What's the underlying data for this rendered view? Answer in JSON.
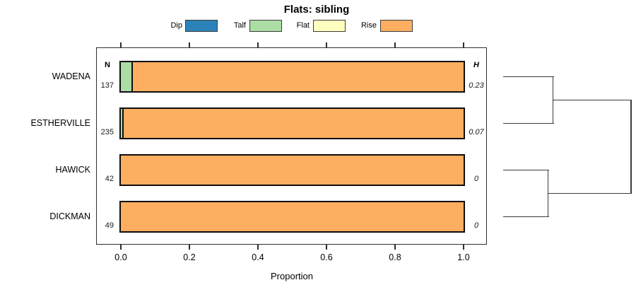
{
  "chart_data": {
    "type": "bar",
    "variant": "horizontal-stacked-proportion-with-dendrogram",
    "title": "Flats: sibling",
    "xlabel": "Proportion",
    "xlim": [
      -0.07,
      1.07
    ],
    "xticks": [
      0,
      0.2,
      0.4,
      0.6,
      0.8,
      1.0
    ],
    "xtick_labels": [
      "0.0",
      "0.2",
      "0.4",
      "0.6",
      "0.8",
      "1.0"
    ],
    "grid": false,
    "legend_position": "top",
    "legend": [
      {
        "label": "Dip",
        "color": "#2B83BA"
      },
      {
        "label": "Talf",
        "color": "#ABDDA4"
      },
      {
        "label": "Flat",
        "color": "#FFFFBF"
      },
      {
        "label": "Rise",
        "color": "#FDAE61"
      }
    ],
    "columns": {
      "n": "N",
      "h": "H"
    },
    "rows": [
      {
        "label": "WADENA",
        "n": "137",
        "h": "0.23",
        "proportions": [
          0,
          0.035,
          0,
          0.965
        ]
      },
      {
        "label": "ESTHERVILLE",
        "n": "235",
        "h": "0.07",
        "proportions": [
          0,
          0.008,
          0,
          0.992
        ]
      },
      {
        "label": "HAWICK",
        "n": "42",
        "h": "0",
        "proportions": [
          0,
          0,
          0,
          1
        ]
      },
      {
        "label": "DICKMAN",
        "n": "49",
        "h": "0",
        "proportions": [
          0,
          0,
          0,
          1
        ]
      }
    ],
    "dendrogram": {
      "joins": [
        {
          "members": [
            "L0",
            "L1"
          ],
          "height": 0.39
        },
        {
          "members": [
            "L2",
            "L3"
          ],
          "height": 0.35
        },
        {
          "members": [
            "J0",
            "J1"
          ],
          "height": 1.0
        }
      ]
    }
  },
  "colors": {
    "bar_border": "#0d0d0d",
    "axis": "#2e2e2e",
    "dendrogram_line": "#3b3b3b",
    "background": "#ffffff"
  }
}
